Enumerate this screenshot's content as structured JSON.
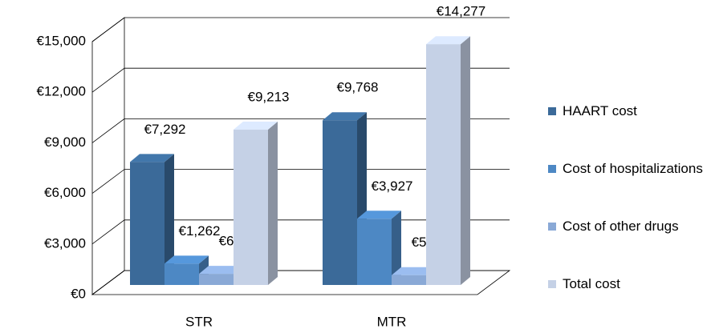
{
  "chart_data": {
    "type": "bar3d",
    "categories": [
      "STR",
      "MTR"
    ],
    "series": [
      {
        "name": "HAART cost",
        "color": "#3b6a99",
        "values": [
          7292,
          9768
        ],
        "value_labels": [
          "€7,292",
          "€9,768"
        ]
      },
      {
        "name": "Cost of hospitalizations",
        "color": "#4d88c4",
        "values": [
          1262,
          3927
        ],
        "value_labels": [
          "€1,262",
          "€3,927"
        ]
      },
      {
        "name": "Cost of other drugs",
        "color": "#8aa9d6",
        "values": [
          659,
          582
        ],
        "value_labels": [
          "€659",
          "€582"
        ]
      },
      {
        "name": "Total cost",
        "color": "#c5d1e6",
        "values": [
          9213,
          14277
        ],
        "value_labels": [
          "€9,213",
          "€14,277"
        ]
      }
    ],
    "ylim": [
      0,
      15000
    ],
    "yticks": [
      {
        "value": 0,
        "label": "€0"
      },
      {
        "value": 3000,
        "label": "€3,000"
      },
      {
        "value": 6000,
        "label": "€6,000"
      },
      {
        "value": 9000,
        "label": "€9,000"
      },
      {
        "value": 12000,
        "label": "€12,000"
      },
      {
        "value": 15000,
        "label": "€15,000"
      }
    ],
    "grid": true,
    "legend": "right"
  }
}
